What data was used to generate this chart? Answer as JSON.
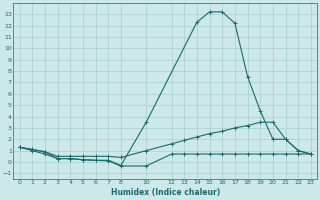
{
  "xlabel": "Humidex (Indice chaleur)",
  "bg_color": "#cce8e8",
  "line_color": "#1a6b6b",
  "grid_color": "#aacece",
  "series": [
    {
      "x": [
        0,
        1,
        2,
        3,
        4,
        5,
        6,
        7,
        8,
        10,
        14,
        15,
        16,
        17,
        18,
        19,
        20,
        21,
        22,
        23
      ],
      "y": [
        1.3,
        1.1,
        0.9,
        0.3,
        0.3,
        0.2,
        0.15,
        0.15,
        -0.3,
        3.5,
        12.3,
        13.2,
        13.2,
        12.2,
        7.5,
        4.5,
        2.0,
        2.0,
        1.0,
        0.7
      ]
    },
    {
      "x": [
        0,
        1,
        2,
        3,
        4,
        5,
        6,
        7,
        8,
        10,
        12,
        13,
        14,
        15,
        16,
        17,
        18,
        19,
        20,
        21,
        22,
        23
      ],
      "y": [
        1.3,
        1.1,
        0.9,
        0.5,
        0.5,
        0.5,
        0.5,
        0.5,
        0.4,
        1.0,
        1.6,
        1.9,
        2.2,
        2.5,
        2.7,
        3.0,
        3.2,
        3.5,
        3.5,
        2.0,
        1.0,
        0.7
      ]
    },
    {
      "x": [
        0,
        1,
        2,
        3,
        4,
        5,
        6,
        7,
        8,
        10,
        12,
        13,
        14,
        15,
        16,
        17,
        18,
        19,
        20,
        21,
        22,
        23
      ],
      "y": [
        1.3,
        1.0,
        0.7,
        0.3,
        0.3,
        0.2,
        0.15,
        0.1,
        -0.35,
        -0.35,
        0.7,
        0.7,
        0.7,
        0.7,
        0.7,
        0.7,
        0.7,
        0.7,
        0.7,
        0.7,
        0.7,
        0.7
      ]
    }
  ],
  "xlim": [
    -0.5,
    23.5
  ],
  "ylim": [
    -1.5,
    14.0
  ],
  "yticks": [
    -1,
    0,
    1,
    2,
    3,
    4,
    5,
    6,
    7,
    8,
    9,
    10,
    11,
    12,
    13
  ],
  "xticks": [
    0,
    1,
    2,
    3,
    4,
    5,
    6,
    7,
    8,
    10,
    12,
    13,
    14,
    15,
    16,
    17,
    18,
    19,
    20,
    21,
    22,
    23
  ]
}
